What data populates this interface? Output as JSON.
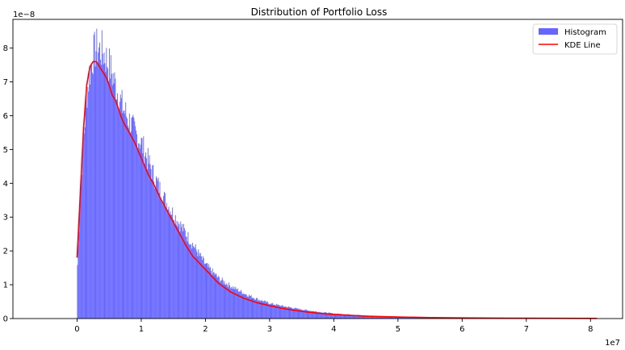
{
  "chart_data": {
    "type": "bar",
    "title": "Distribution of Portfolio Loss",
    "xlabel": "",
    "ylabel": "",
    "x_offset_label": "1e7",
    "y_offset_label": "1e−8",
    "xlim": [
      -1.0,
      8.5
    ],
    "ylim": [
      0,
      8.85
    ],
    "x_ticks": [
      0,
      1,
      2,
      3,
      4,
      5,
      6,
      7,
      8
    ],
    "y_ticks": [
      0,
      1,
      2,
      3,
      4,
      5,
      6,
      7,
      8
    ],
    "x_tick_labels": [
      "0",
      "1",
      "2",
      "3",
      "4",
      "5",
      "6",
      "7",
      "8"
    ],
    "y_tick_labels": [
      "0",
      "1",
      "2",
      "3",
      "4",
      "5",
      "6",
      "7",
      "8"
    ],
    "grid": false,
    "legend_position": "top-right",
    "colors": {
      "histogram": "#6666ff",
      "kde": "#ff0000"
    },
    "series": [
      {
        "name": "Histogram",
        "type": "histogram",
        "bin_range": [
          0,
          8.1
        ],
        "density_profile": [
          [
            0.0,
            1.3
          ],
          [
            0.05,
            3.8
          ],
          [
            0.1,
            5.3
          ],
          [
            0.15,
            6.6
          ],
          [
            0.2,
            7.3
          ],
          [
            0.25,
            7.8
          ],
          [
            0.3,
            8.0
          ],
          [
            0.4,
            7.9
          ],
          [
            0.5,
            7.5
          ],
          [
            0.6,
            6.9
          ],
          [
            0.7,
            6.3
          ],
          [
            0.8,
            5.9
          ],
          [
            0.9,
            5.5
          ],
          [
            1.0,
            5.2
          ],
          [
            1.1,
            4.7
          ],
          [
            1.2,
            4.2
          ],
          [
            1.3,
            3.8
          ],
          [
            1.4,
            3.4
          ],
          [
            1.5,
            3.1
          ],
          [
            1.6,
            2.8
          ],
          [
            1.7,
            2.5
          ],
          [
            1.8,
            2.2
          ],
          [
            1.9,
            1.9
          ],
          [
            2.0,
            1.6
          ],
          [
            2.2,
            1.2
          ],
          [
            2.4,
            0.95
          ],
          [
            2.6,
            0.75
          ],
          [
            2.8,
            0.58
          ],
          [
            3.0,
            0.45
          ],
          [
            3.2,
            0.37
          ],
          [
            3.4,
            0.3
          ],
          [
            3.6,
            0.24
          ],
          [
            3.8,
            0.19
          ],
          [
            4.0,
            0.15
          ],
          [
            4.5,
            0.09
          ],
          [
            5.0,
            0.05
          ],
          [
            5.5,
            0.035
          ],
          [
            6.0,
            0.02
          ],
          [
            6.5,
            0.012
          ],
          [
            7.0,
            0.008
          ],
          [
            7.5,
            0.005
          ],
          [
            8.1,
            0.003
          ]
        ]
      },
      {
        "name": "KDE Line",
        "type": "line",
        "x": [
          0.0,
          0.05,
          0.1,
          0.15,
          0.2,
          0.25,
          0.3,
          0.35,
          0.4,
          0.45,
          0.5,
          0.55,
          0.6,
          0.7,
          0.75,
          0.8,
          0.9,
          1.0,
          1.1,
          1.2,
          1.3,
          1.4,
          1.5,
          1.6,
          1.7,
          1.8,
          1.9,
          2.0,
          2.2,
          2.4,
          2.6,
          2.8,
          3.0,
          3.2,
          3.4,
          3.6,
          3.8,
          4.0,
          4.5,
          5.0,
          5.5,
          6.0,
          6.5,
          7.0,
          7.5,
          8.1
        ],
        "y": [
          1.8,
          3.7,
          5.6,
          6.9,
          7.45,
          7.6,
          7.6,
          7.45,
          7.3,
          7.15,
          6.9,
          6.6,
          6.45,
          5.9,
          5.7,
          5.55,
          5.2,
          4.75,
          4.3,
          3.95,
          3.55,
          3.2,
          2.85,
          2.5,
          2.15,
          1.85,
          1.65,
          1.45,
          1.05,
          0.78,
          0.6,
          0.47,
          0.38,
          0.3,
          0.24,
          0.19,
          0.15,
          0.12,
          0.07,
          0.045,
          0.03,
          0.02,
          0.015,
          0.01,
          0.007,
          0.005
        ]
      }
    ],
    "legend": [
      {
        "label": "Histogram"
      },
      {
        "label": "KDE Line"
      }
    ]
  }
}
